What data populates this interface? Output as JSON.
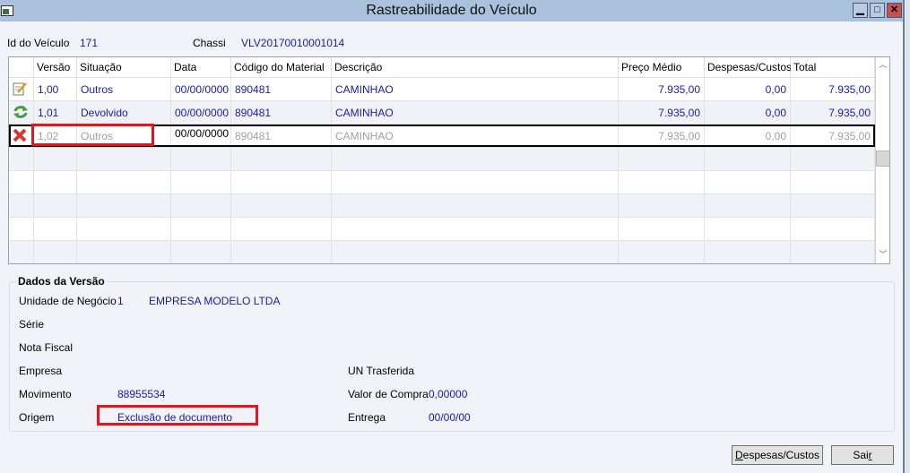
{
  "window": {
    "title": "Rastreabilidade do Veículo",
    "controls": [
      "minimize",
      "maximize",
      "close"
    ]
  },
  "header": {
    "id_label": "Id do Veículo",
    "id_value": "171",
    "chassi_label": "Chassi",
    "chassi_value": "VLV20170010001014"
  },
  "grid": {
    "columns": [
      "",
      "Versão",
      "Situação",
      "Data",
      "Código do Material",
      "Descrição",
      "Preço Médio",
      "Despesas/Custos",
      "Total"
    ],
    "rows": [
      {
        "icon": "edit-document-icon",
        "versao": "1,00",
        "situacao": "Outros",
        "data": "00/00/0000",
        "codigo": "890481",
        "descricao": "CAMINHAO",
        "preco": "7.935,00",
        "despesas": "0,00",
        "total": "7.935,00"
      },
      {
        "icon": "refresh-arrows-icon",
        "versao": "1,01",
        "situacao": "Devolvido",
        "data": "00/00/0000",
        "codigo": "890481",
        "descricao": "CAMINHAO",
        "preco": "7.935,00",
        "despesas": "0,00",
        "total": "7.935,00"
      },
      {
        "icon": "red-x-delete-icon",
        "versao": "1,02",
        "situacao": "Outros",
        "data": "00/00/0000",
        "codigo": "890481",
        "descricao": "CAMINHAO",
        "preco": "7.935,00",
        "despesas": "0,00",
        "total": "7.935,00"
      }
    ]
  },
  "dados": {
    "title": "Dados da Versão",
    "unidade_label": "Unidade de Negócio",
    "unidade_code": "1",
    "unidade_name": "EMPRESA MODELO LTDA",
    "serie_label": "Série",
    "nota_label": "Nota Fiscal",
    "empresa_label": "Empresa",
    "movimento_label": "Movimento",
    "movimento_value": "88955534",
    "origem_label": "Origem",
    "origem_value": "Exclusão de documento",
    "un_label": "UN Trasferida",
    "valor_label": "Valor de Compra",
    "valor_value": "0,00000",
    "entrega_label": "Entrega",
    "entrega_value": "00/00/00"
  },
  "buttons": {
    "despesas_pre": "D",
    "despesas_rest": "espesas/Custos",
    "sair_pre": "Sai",
    "sair_u": "r"
  },
  "colors": {
    "value_text": "#1a1aa8",
    "highlight": "#e8141c",
    "titlebar": "#a9c1dc"
  }
}
